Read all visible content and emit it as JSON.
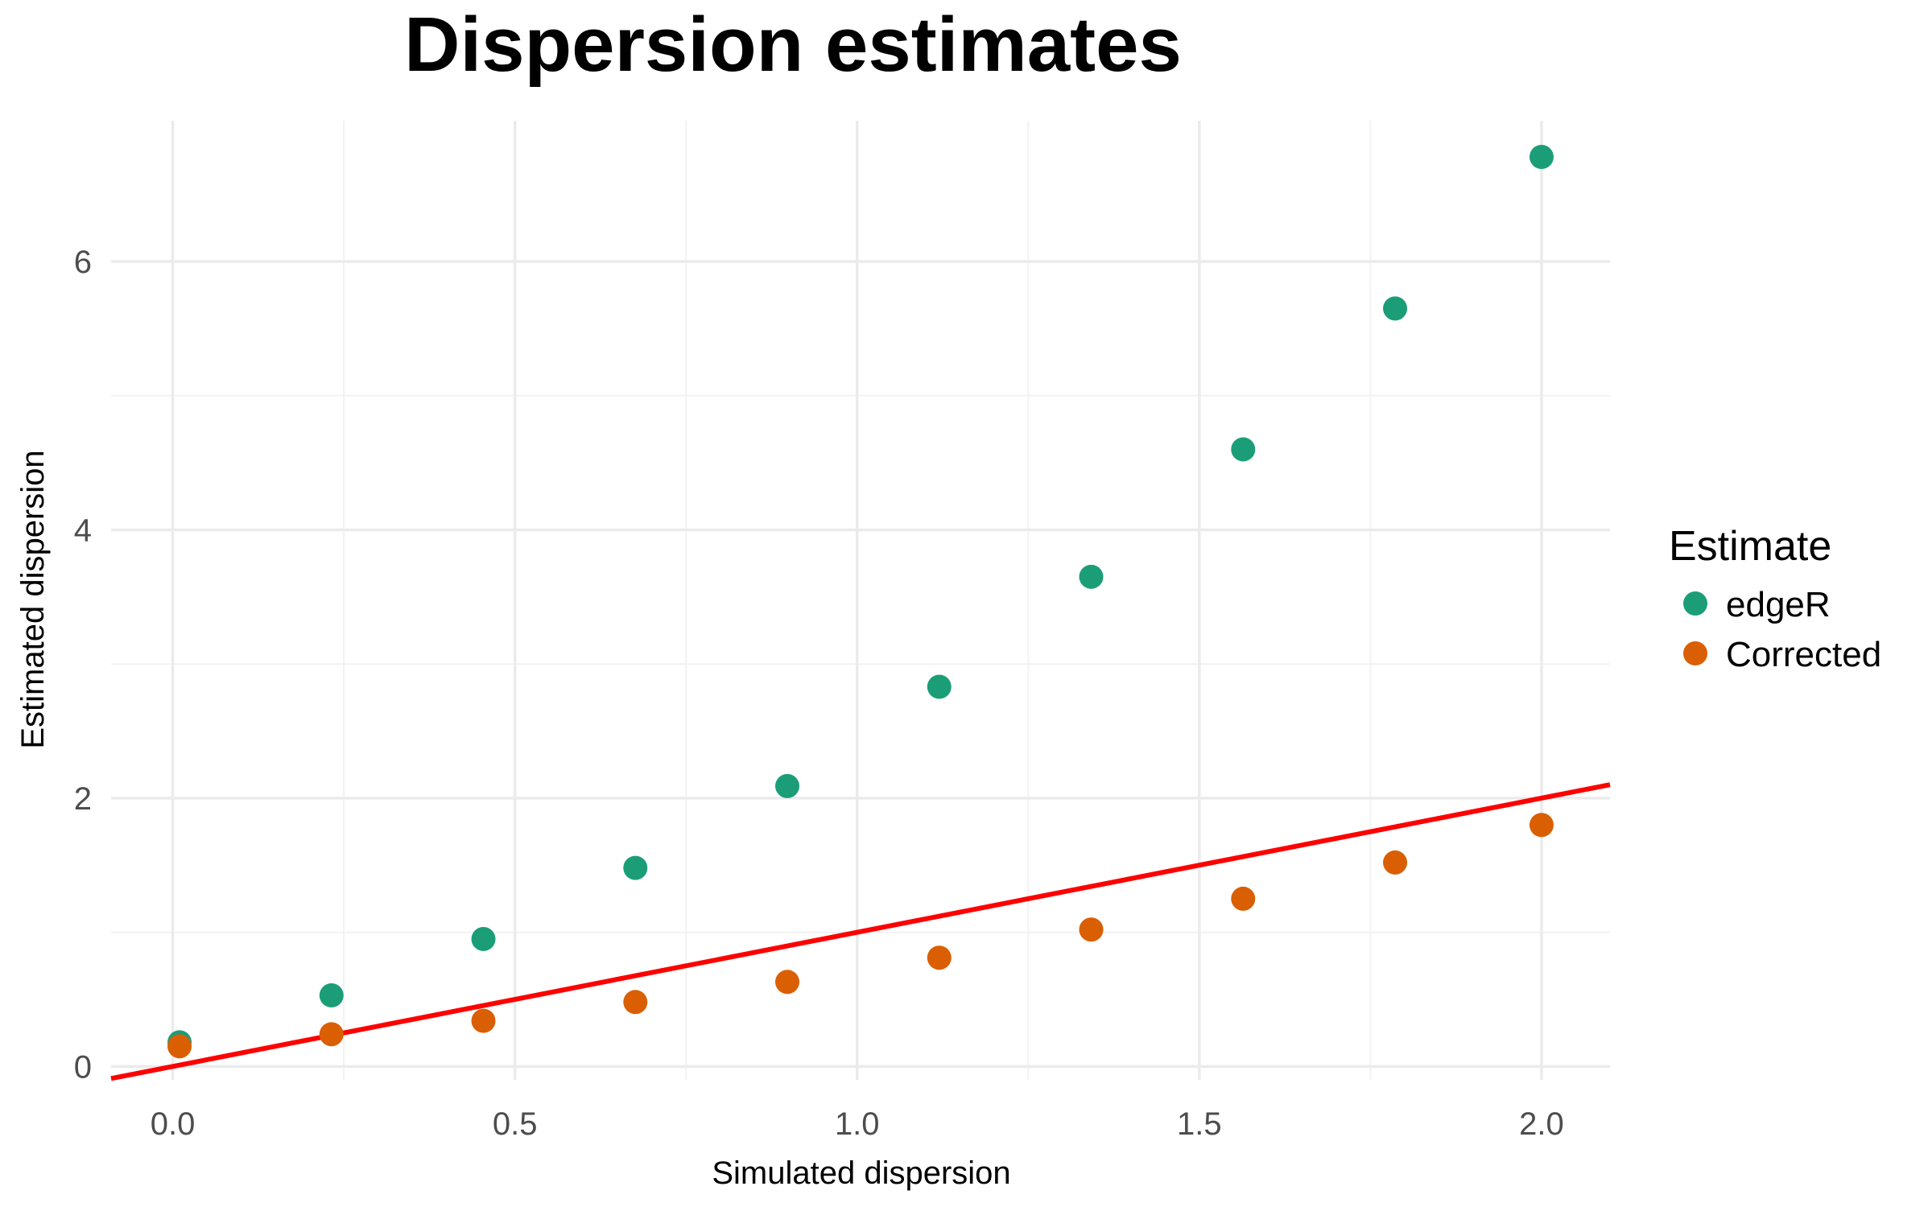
{
  "chart_data": {
    "type": "scatter",
    "title": "Dispersion estimates",
    "xlabel": "Simulated dispersion",
    "ylabel": "Estimated dispersion",
    "xlim": [
      -0.09,
      2.1
    ],
    "ylim": [
      -0.1,
      7.05
    ],
    "x_ticks": [
      0.0,
      0.5,
      1.0,
      1.5,
      2.0
    ],
    "x_tick_labels": [
      "0.0",
      "0.5",
      "1.0",
      "1.5",
      "2.0"
    ],
    "y_ticks": [
      0,
      2,
      4,
      6
    ],
    "y_tick_labels": [
      "0",
      "2",
      "4",
      "6"
    ],
    "x_minor_ticks": [
      0.25,
      0.75,
      1.25,
      1.75
    ],
    "y_minor_ticks": [
      1,
      3,
      5
    ],
    "grid": true,
    "legend": {
      "title": "Estimate",
      "position": "right"
    },
    "series": [
      {
        "name": "edgeR",
        "color": "#1b9e77",
        "x": [
          0.01,
          0.232,
          0.454,
          0.676,
          0.898,
          1.12,
          1.342,
          1.564,
          1.786,
          2.0
        ],
        "y": [
          0.18,
          0.53,
          0.95,
          1.48,
          2.09,
          2.83,
          3.65,
          4.6,
          5.65,
          6.78
        ]
      },
      {
        "name": "Corrected",
        "color": "#d95f02",
        "x": [
          0.01,
          0.232,
          0.454,
          0.676,
          0.898,
          1.12,
          1.342,
          1.564,
          1.786,
          2.0
        ],
        "y": [
          0.15,
          0.24,
          0.34,
          0.48,
          0.63,
          0.81,
          1.02,
          1.25,
          1.52,
          1.8
        ]
      }
    ],
    "reference_line": {
      "type": "identity",
      "slope": 1,
      "intercept": 0,
      "color": "#ff0000"
    }
  }
}
